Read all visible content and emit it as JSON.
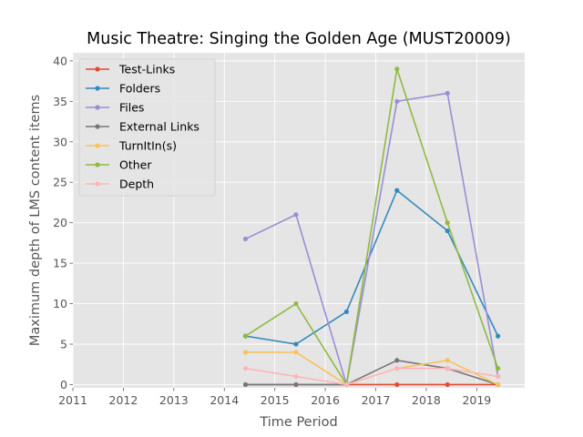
{
  "chart_data": {
    "type": "line",
    "title": "Music Theatre: Singing the Golden Age (MUST20009)",
    "xlabel": "Time Period",
    "ylabel": "Maximum depth of LMS content items",
    "xlim": [
      2011,
      2019.95
    ],
    "ylim": [
      -0.4,
      41
    ],
    "x_ticks": [
      2011,
      2012,
      2013,
      2014,
      2015,
      2016,
      2017,
      2018,
      2019
    ],
    "y_ticks": [
      0,
      5,
      10,
      15,
      20,
      25,
      30,
      35,
      40
    ],
    "grid": true,
    "legend_position": "top-left",
    "x": [
      2014.42,
      2015.42,
      2016.42,
      2017.42,
      2018.42,
      2019.42
    ],
    "series": [
      {
        "name": "Test-Links",
        "color": "#e24a33",
        "values": [
          0,
          0,
          0,
          0,
          0,
          0
        ]
      },
      {
        "name": "Folders",
        "color": "#348abd",
        "values": [
          6,
          5,
          9,
          24,
          19,
          6
        ]
      },
      {
        "name": "Files",
        "color": "#988ed5",
        "values": [
          18,
          21,
          0,
          35,
          36,
          1
        ]
      },
      {
        "name": "External Links",
        "color": "#777777",
        "values": [
          0,
          0,
          0,
          3,
          2,
          0
        ]
      },
      {
        "name": "TurnItIn(s)",
        "color": "#fbc15e",
        "values": [
          4,
          4,
          0,
          2,
          3,
          0
        ]
      },
      {
        "name": "Other",
        "color": "#8eba42",
        "values": [
          6,
          10,
          0,
          39,
          20,
          2
        ]
      },
      {
        "name": "Depth",
        "color": "#ffb5b8",
        "values": [
          2,
          1,
          0,
          2,
          2,
          1
        ]
      }
    ]
  }
}
